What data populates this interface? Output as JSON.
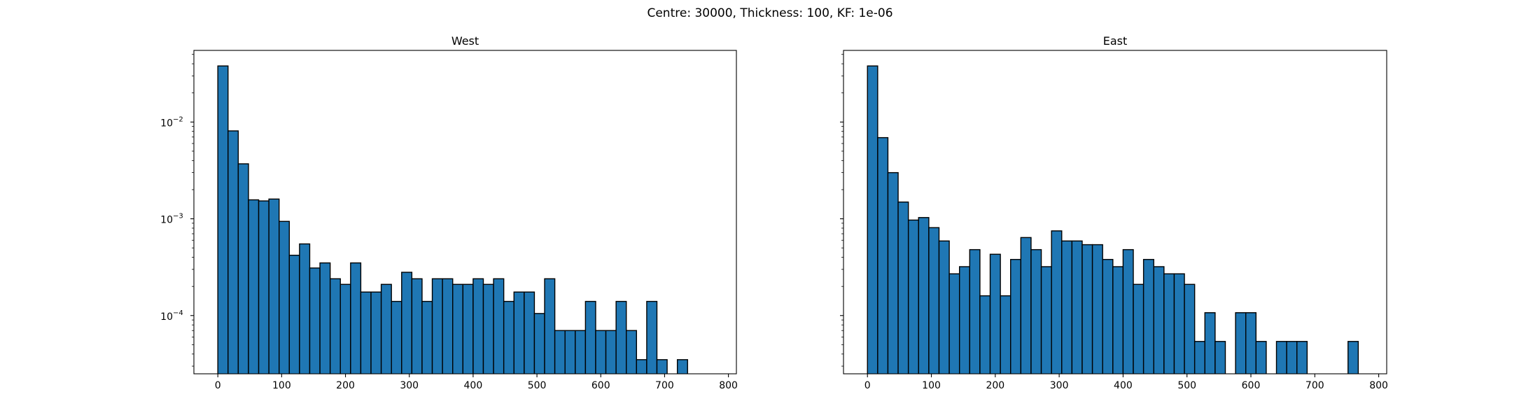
{
  "figure": {
    "suptitle": "Centre: 30000, Thickness: 100, KF: 1e-06"
  },
  "chart_data": [
    {
      "type": "bar",
      "title": "West",
      "xlabel": "",
      "ylabel": "",
      "yscale": "log",
      "xlim": [
        -37.5,
        812.5
      ],
      "ylim": [
        2.5e-05,
        0.055
      ],
      "xticks": [
        0,
        100,
        200,
        300,
        400,
        500,
        600,
        700,
        800
      ],
      "yticks": [
        {
          "value": 0.0001,
          "base": "10",
          "exp": "−4"
        },
        {
          "value": 0.001,
          "base": "10",
          "exp": "−3"
        },
        {
          "value": 0.01,
          "base": "10",
          "exp": "−2"
        }
      ],
      "bin_width": 16,
      "bin_starts": [
        0,
        16,
        32,
        48,
        64,
        80,
        96,
        112,
        128,
        144,
        160,
        176,
        192,
        208,
        224,
        240,
        256,
        272,
        288,
        304,
        320,
        336,
        352,
        368,
        384,
        400,
        416,
        432,
        448,
        464,
        480,
        496,
        512,
        528,
        544,
        560,
        576,
        592,
        608,
        624,
        640,
        656,
        672,
        688,
        704,
        720,
        736
      ],
      "values": [
        0.038,
        0.0081,
        0.0037,
        0.00157,
        0.00153,
        0.0016,
        0.00094,
        0.00042,
        0.00055,
        0.00031,
        0.00035,
        0.00024,
        0.00021,
        0.00035,
        0.000175,
        0.000175,
        0.00021,
        0.00014,
        0.00028,
        0.00024,
        0.00014,
        0.00024,
        0.00024,
        0.00021,
        0.00021,
        0.00024,
        0.00021,
        0.00024,
        0.00014,
        0.000175,
        0.000175,
        0.000105,
        0.00024,
        7e-05,
        7e-05,
        7e-05,
        0.00014,
        7e-05,
        7e-05,
        0.00014,
        7e-05,
        3.5e-05,
        0.00014,
        3.5e-05,
        0,
        3.5e-05,
        0
      ],
      "grid": false,
      "bar_color": "#1f77b4",
      "edge_color": "#000000"
    },
    {
      "type": "bar",
      "title": "East",
      "xlabel": "",
      "ylabel": "",
      "yscale": "log",
      "xlim": [
        -37.5,
        812.5
      ],
      "ylim": [
        2.5e-05,
        0.055
      ],
      "xticks": [
        0,
        100,
        200,
        300,
        400,
        500,
        600,
        700,
        800
      ],
      "bin_width": 16,
      "bin_starts": [
        0,
        16,
        32,
        48,
        64,
        80,
        96,
        112,
        128,
        144,
        160,
        176,
        192,
        208,
        224,
        240,
        256,
        272,
        288,
        304,
        320,
        336,
        352,
        368,
        384,
        400,
        416,
        432,
        448,
        464,
        480,
        496,
        512,
        528,
        544,
        560,
        576,
        592,
        608,
        624,
        640,
        656,
        672,
        688,
        704,
        720,
        736,
        752
      ],
      "values": [
        0.038,
        0.0069,
        0.003,
        0.00149,
        0.00097,
        0.00103,
        0.00081,
        0.00059,
        0.00027,
        0.00032,
        0.00048,
        0.00016,
        0.00043,
        0.00016,
        0.00038,
        0.00064,
        0.00048,
        0.00032,
        0.00075,
        0.00059,
        0.00059,
        0.00054,
        0.00054,
        0.00038,
        0.00032,
        0.00048,
        0.00021,
        0.00038,
        0.00032,
        0.00027,
        0.00027,
        0.00021,
        5.4e-05,
        0.000107,
        5.4e-05,
        0,
        0.000107,
        0.000107,
        5.4e-05,
        0,
        5.4e-05,
        5.4e-05,
        5.4e-05,
        0,
        0,
        0,
        0,
        5.4e-05
      ],
      "grid": false,
      "bar_color": "#1f77b4",
      "edge_color": "#000000"
    }
  ]
}
